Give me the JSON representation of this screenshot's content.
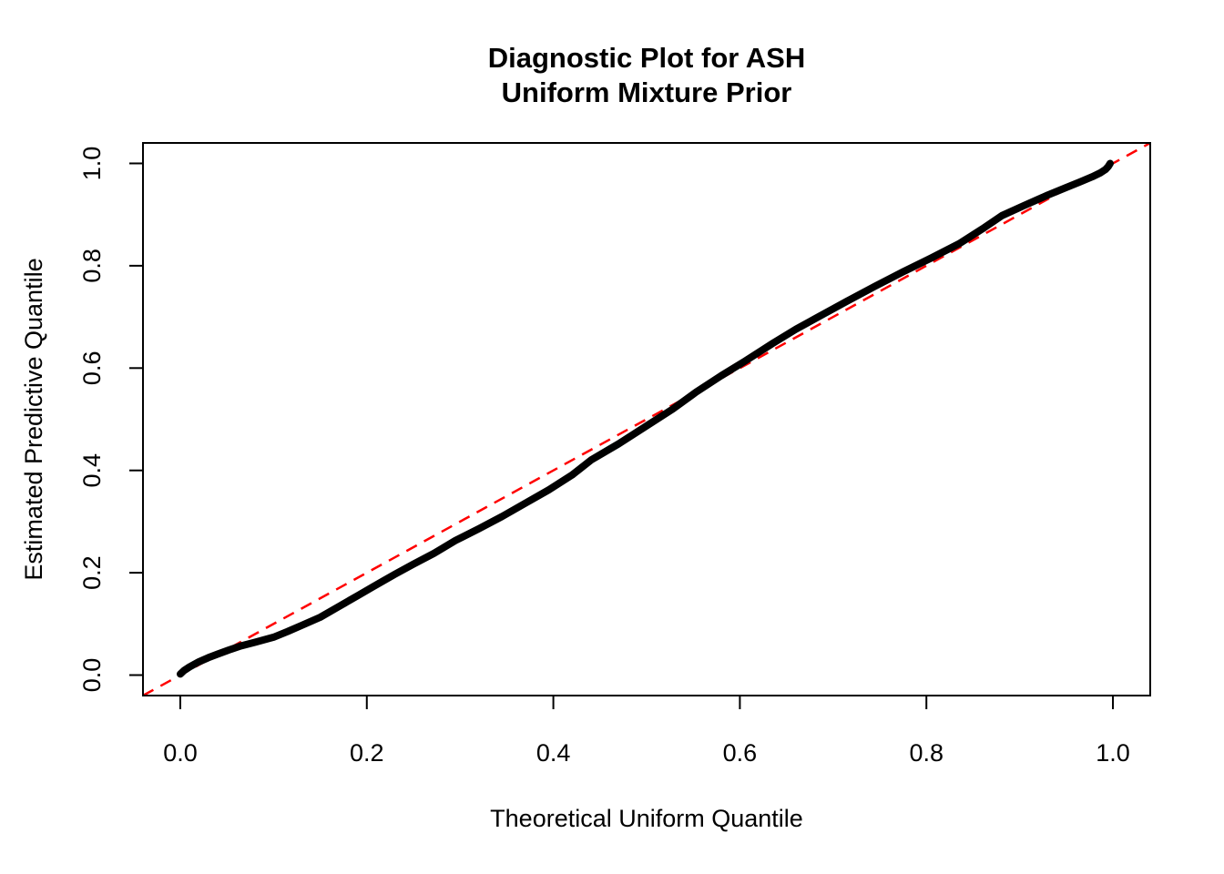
{
  "chart_data": {
    "type": "scatter",
    "title": "Diagnostic Plot for ASH\nUniform Mixture Prior",
    "title_lines": [
      "Diagnostic Plot for ASH",
      "Uniform Mixture Prior"
    ],
    "xlabel": "Theoretical Uniform Quantile",
    "ylabel": "Estimated Predictive Quantile",
    "xlim": [
      -0.04,
      1.04
    ],
    "ylim": [
      -0.04,
      1.04
    ],
    "grid": false,
    "legend": "none",
    "x_tick_values": [
      0.0,
      0.2,
      0.4,
      0.6,
      0.8,
      1.0
    ],
    "x_tick_labels": [
      "0.0",
      "0.2",
      "0.4",
      "0.6",
      "0.8",
      "1.0"
    ],
    "y_tick_values": [
      0.0,
      0.2,
      0.4,
      0.6,
      0.8,
      1.0
    ],
    "y_tick_labels": [
      "0.0",
      "0.2",
      "0.4",
      "0.6",
      "0.8",
      "1.0"
    ],
    "point_color": "#000000",
    "reference_line": {
      "type": "identity",
      "style": "dashed",
      "color": "#FF0000",
      "from": [
        -0.04,
        -0.04
      ],
      "to": [
        1.04,
        1.04
      ]
    },
    "series": [
      {
        "name": "estimated-vs-theoretical-quantile",
        "color": "#000000",
        "points": [
          [
            0.0,
            0.002
          ],
          [
            0.004,
            0.009
          ],
          [
            0.01,
            0.016
          ],
          [
            0.02,
            0.026
          ],
          [
            0.03,
            0.034
          ],
          [
            0.04,
            0.041
          ],
          [
            0.052,
            0.049
          ],
          [
            0.065,
            0.057
          ],
          [
            0.08,
            0.064
          ],
          [
            0.1,
            0.074
          ],
          [
            0.115,
            0.085
          ],
          [
            0.13,
            0.097
          ],
          [
            0.15,
            0.113
          ],
          [
            0.17,
            0.134
          ],
          [
            0.19,
            0.155
          ],
          [
            0.207,
            0.173
          ],
          [
            0.23,
            0.197
          ],
          [
            0.25,
            0.217
          ],
          [
            0.272,
            0.238
          ],
          [
            0.295,
            0.263
          ],
          [
            0.32,
            0.286
          ],
          [
            0.345,
            0.31
          ],
          [
            0.37,
            0.336
          ],
          [
            0.395,
            0.362
          ],
          [
            0.42,
            0.391
          ],
          [
            0.441,
            0.421
          ],
          [
            0.47,
            0.452
          ],
          [
            0.5,
            0.487
          ],
          [
            0.528,
            0.52
          ],
          [
            0.553,
            0.553
          ],
          [
            0.58,
            0.585
          ],
          [
            0.605,
            0.613
          ],
          [
            0.635,
            0.648
          ],
          [
            0.66,
            0.676
          ],
          [
            0.686,
            0.702
          ],
          [
            0.715,
            0.731
          ],
          [
            0.745,
            0.76
          ],
          [
            0.775,
            0.788
          ],
          [
            0.805,
            0.815
          ],
          [
            0.835,
            0.843
          ],
          [
            0.86,
            0.872
          ],
          [
            0.881,
            0.898
          ],
          [
            0.905,
            0.918
          ],
          [
            0.93,
            0.938
          ],
          [
            0.95,
            0.953
          ],
          [
            0.965,
            0.964
          ],
          [
            0.978,
            0.974
          ],
          [
            0.987,
            0.982
          ],
          [
            0.992,
            0.988
          ],
          [
            0.995,
            0.994
          ],
          [
            0.997,
            1.0
          ]
        ]
      }
    ]
  }
}
